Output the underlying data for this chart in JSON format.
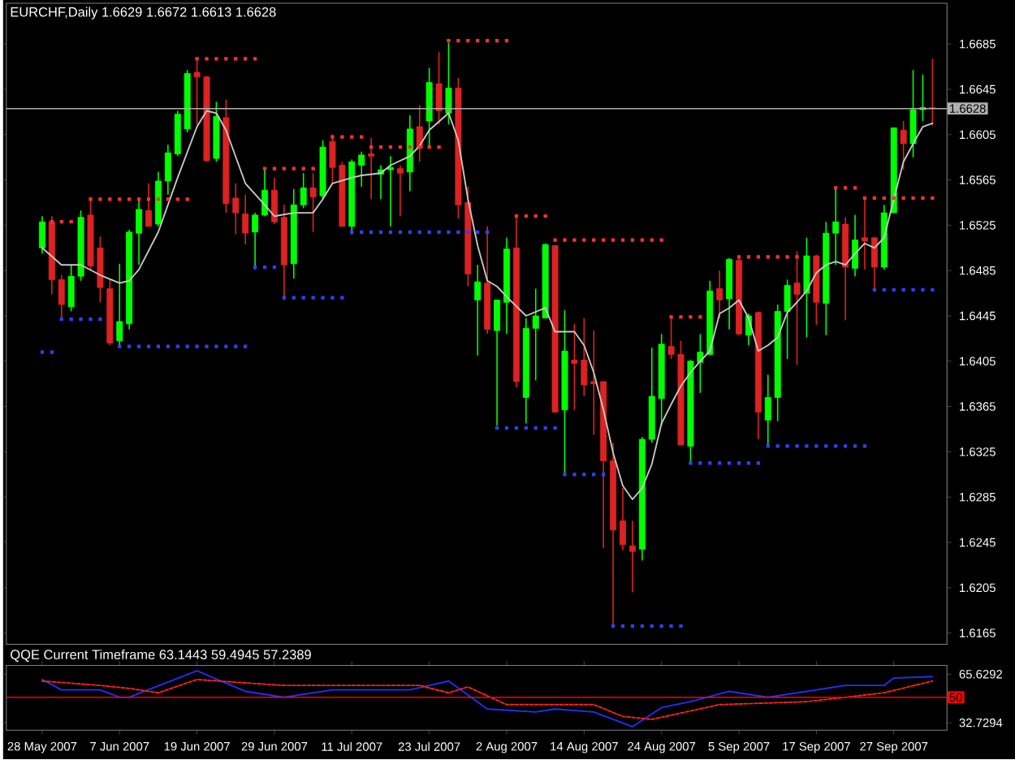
{
  "chart_data": [
    {
      "type": "candlestick",
      "title": "EURCHF,Daily  1.6629 1.6672 1.6613 1.6628",
      "categories": [
        null,
        null,
        null,
        null,
        null,
        null,
        null,
        null,
        null,
        null,
        null,
        null,
        null,
        null,
        null,
        null,
        null,
        null,
        null,
        null,
        null,
        null,
        null,
        null,
        null,
        null,
        null,
        null,
        null,
        null,
        null,
        null,
        null,
        null,
        null,
        null,
        null,
        null,
        null,
        null,
        null,
        null,
        null,
        null,
        null,
        null,
        null,
        null,
        null,
        null,
        null,
        null,
        null,
        null,
        null,
        null,
        null,
        null,
        null,
        null,
        null,
        null,
        null,
        null,
        null,
        null,
        null,
        null,
        null,
        null,
        null,
        null,
        null,
        null,
        null,
        null,
        null,
        null,
        null,
        null,
        null,
        null,
        null,
        null,
        null,
        null,
        null,
        null,
        null,
        null,
        null,
        null,
        null
      ],
      "ohlc": [
        [
          1.6505,
          1.6533,
          1.65,
          1.6528
        ],
        [
          1.6528,
          1.6533,
          1.6464,
          1.6477
        ],
        [
          1.6477,
          1.6481,
          1.6443,
          1.6455
        ],
        [
          1.6453,
          1.649,
          1.6449,
          1.648
        ],
        [
          1.648,
          1.6538,
          1.6476,
          1.6532
        ],
        [
          1.6534,
          1.655,
          1.6486,
          1.6489
        ],
        [
          1.6505,
          1.6515,
          1.6457,
          1.647
        ],
        [
          1.6469,
          1.6478,
          1.6419,
          1.6421
        ],
        [
          1.6423,
          1.6491,
          1.6417,
          1.644
        ],
        [
          1.6438,
          1.6521,
          1.6433,
          1.6519
        ],
        [
          1.6518,
          1.6547,
          1.649,
          1.6539
        ],
        [
          1.6538,
          1.6562,
          1.6524,
          1.6524
        ],
        [
          1.6526,
          1.6572,
          1.6524,
          1.6564
        ],
        [
          1.6564,
          1.6596,
          1.6552,
          1.6589
        ],
        [
          1.6588,
          1.6626,
          1.6586,
          1.6623
        ],
        [
          1.661,
          1.6662,
          1.6607,
          1.6659
        ],
        [
          1.666,
          1.6671,
          1.6614,
          1.6656
        ],
        [
          1.6656,
          1.6657,
          1.6581,
          1.6582
        ],
        [
          1.6584,
          1.6634,
          1.6581,
          1.6621
        ],
        [
          1.662,
          1.6636,
          1.6536,
          1.6544
        ],
        [
          1.6549,
          1.6562,
          1.6517,
          1.6536
        ],
        [
          1.6535,
          1.6552,
          1.6508,
          1.6518
        ],
        [
          1.6519,
          1.6536,
          1.6486,
          1.6534
        ],
        [
          1.6534,
          1.6576,
          1.6533,
          1.6556
        ],
        [
          1.6556,
          1.6567,
          1.6526,
          1.6528
        ],
        [
          1.6532,
          1.6543,
          1.6459,
          1.649
        ],
        [
          1.6491,
          1.6557,
          1.6478,
          1.6543
        ],
        [
          1.6543,
          1.6571,
          1.654,
          1.6558
        ],
        [
          1.6558,
          1.6571,
          1.6519,
          1.655
        ],
        [
          1.6551,
          1.66,
          1.6548,
          1.6594
        ],
        [
          1.6599,
          1.6605,
          1.6562,
          1.6576
        ],
        [
          1.6578,
          1.6581,
          1.6524,
          1.6524
        ],
        [
          1.6524,
          1.6583,
          1.6517,
          1.6581
        ],
        [
          1.6578,
          1.659,
          1.6559,
          1.6587
        ],
        [
          1.6588,
          1.6602,
          1.6548,
          1.6586
        ],
        [
          1.657,
          1.6578,
          1.6548,
          1.6574
        ],
        [
          1.6574,
          1.6586,
          1.6524,
          1.6576
        ],
        [
          1.6575,
          1.6578,
          1.6533,
          1.6571
        ],
        [
          1.6572,
          1.6622,
          1.6555,
          1.661
        ],
        [
          1.6612,
          1.6631,
          1.6581,
          1.6593
        ],
        [
          1.6617,
          1.6664,
          1.6595,
          1.6651
        ],
        [
          1.665,
          1.6678,
          1.6614,
          1.6626
        ],
        [
          1.6624,
          1.6686,
          1.6614,
          1.6646
        ],
        [
          1.6646,
          1.6655,
          1.6531,
          1.6543
        ],
        [
          1.6545,
          1.6559,
          1.6471,
          1.6482
        ],
        [
          1.6459,
          1.649,
          1.641,
          1.6475
        ],
        [
          1.6474,
          1.6524,
          1.6429,
          1.6433
        ],
        [
          1.6432,
          1.6459,
          1.6348,
          1.6459
        ],
        [
          1.6457,
          1.6514,
          1.6429,
          1.6504
        ],
        [
          1.6505,
          1.6533,
          1.6382,
          1.6387
        ],
        [
          1.6373,
          1.6443,
          1.635,
          1.6434
        ],
        [
          1.6434,
          1.6469,
          1.6388,
          1.6445
        ],
        [
          1.6443,
          1.6509,
          1.6443,
          1.6508
        ],
        [
          1.6507,
          1.6507,
          1.636,
          1.636
        ],
        [
          1.6362,
          1.645,
          1.6305,
          1.6414
        ],
        [
          1.6406,
          1.6438,
          1.6362,
          1.6403
        ],
        [
          1.6406,
          1.6443,
          1.6374,
          1.6384
        ],
        [
          1.6387,
          1.6432,
          1.634,
          1.6385
        ],
        [
          1.6387,
          1.6387,
          1.624,
          1.6317
        ],
        [
          1.6317,
          1.6333,
          1.6171,
          1.6256
        ],
        [
          1.6264,
          1.6293,
          1.6238,
          1.6243
        ],
        [
          1.6242,
          1.6264,
          1.6201,
          1.6237
        ],
        [
          1.6239,
          1.6338,
          1.6229,
          1.6336
        ],
        [
          1.6336,
          1.6417,
          1.6333,
          1.6374
        ],
        [
          1.6372,
          1.6429,
          1.6348,
          1.642
        ],
        [
          1.6418,
          1.6443,
          1.6407,
          1.6411
        ],
        [
          1.6411,
          1.6423,
          1.6331,
          1.6331
        ],
        [
          1.633,
          1.6406,
          1.6314,
          1.6405
        ],
        [
          1.6404,
          1.6429,
          1.6377,
          1.6413
        ],
        [
          1.6411,
          1.6476,
          1.641,
          1.6467
        ],
        [
          1.6469,
          1.6485,
          1.6443,
          1.6459
        ],
        [
          1.646,
          1.6496,
          1.6433,
          1.6495
        ],
        [
          1.6494,
          1.6498,
          1.6428,
          1.6429
        ],
        [
          1.6428,
          1.6447,
          1.6419,
          1.6445
        ],
        [
          1.6448,
          1.6449,
          1.6336,
          1.636
        ],
        [
          1.6353,
          1.6393,
          1.6331,
          1.6373
        ],
        [
          1.6373,
          1.6455,
          1.6352,
          1.6449
        ],
        [
          1.6449,
          1.6477,
          1.6407,
          1.6472
        ],
        [
          1.6474,
          1.6502,
          1.6402,
          1.6464
        ],
        [
          1.6465,
          1.6514,
          1.6426,
          1.6498
        ],
        [
          1.6498,
          1.6499,
          1.6437,
          1.6457
        ],
        [
          1.6456,
          1.6528,
          1.6428,
          1.6518
        ],
        [
          1.6518,
          1.6557,
          1.649,
          1.6528
        ],
        [
          1.6526,
          1.6532,
          1.6441,
          1.6488
        ],
        [
          1.6487,
          1.6534,
          1.648,
          1.6512
        ],
        [
          1.6514,
          1.655,
          1.6486,
          1.6511
        ],
        [
          1.6514,
          1.6514,
          1.6467,
          1.6488
        ],
        [
          1.6488,
          1.6543,
          1.6486,
          1.6536
        ],
        [
          1.6536,
          1.6611,
          1.6536,
          1.6611
        ],
        [
          1.6609,
          1.6617,
          1.6574,
          1.6597
        ],
        [
          1.6597,
          1.6662,
          1.6585,
          1.6627
        ],
        [
          1.6627,
          1.6658,
          1.6617,
          1.6629
        ],
        [
          1.6629,
          1.6672,
          1.6613,
          1.6628
        ]
      ],
      "colors": [
        "#00ff00",
        "#dd2222",
        "#dd2222",
        "#00ff00",
        "#00ff00",
        "#dd2222",
        "#dd2222",
        "#dd2222",
        "#00ff00",
        "#00ff00",
        "#00ff00",
        "#dd2222",
        "#00ff00",
        "#00ff00",
        "#00ff00",
        "#00ff00",
        "#dd2222",
        "#dd2222",
        "#00ff00",
        "#dd2222",
        "#dd2222",
        "#dd2222",
        "#00ff00",
        "#00ff00",
        "#dd2222",
        "#dd2222",
        "#00ff00",
        "#00ff00",
        "#dd2222",
        "#00ff00",
        "#dd2222",
        "#dd2222",
        "#00ff00",
        "#00ff00",
        "#dd2222",
        "#00ff00",
        "#00ff00",
        "#dd2222",
        "#00ff00",
        "#dd2222",
        "#00ff00",
        "#dd2222",
        "#00ff00",
        "#dd2222",
        "#dd2222",
        "#00ff00",
        "#dd2222",
        "#00ff00",
        "#00ff00",
        "#dd2222",
        "#00ff00",
        "#00ff00",
        "#00ff00",
        "#dd2222",
        "#00ff00",
        "#dd2222",
        "#dd2222",
        "#dd2222",
        "#dd2222",
        "#dd2222",
        "#dd2222",
        "#dd2222",
        "#00ff00",
        "#00ff00",
        "#00ff00",
        "#dd2222",
        "#dd2222",
        "#00ff00",
        "#00ff00",
        "#00ff00",
        "#dd2222",
        "#00ff00",
        "#dd2222",
        "#00ff00",
        "#dd2222",
        "#00ff00",
        "#00ff00",
        "#00ff00",
        "#dd2222",
        "#00ff00",
        "#dd2222",
        "#00ff00",
        "#00ff00",
        "#dd2222",
        "#00ff00",
        "#dd2222",
        "#dd2222",
        "#00ff00",
        "#00ff00",
        "#dd2222",
        "#00ff00",
        "#00ff00",
        "#dd2222"
      ],
      "series": [
        {
          "type": "line",
          "color": "#c8c8c8",
          "line_style": "solid",
          "marker": "none",
          "values": [
            1.6505,
            null,
            1.649,
            null,
            1.649,
            null,
            1.6481,
            null,
            1.6474,
            1.6476,
            1.6486,
            null,
            1.6519,
            null,
            1.6567,
            null,
            1.6612,
            1.6626,
            1.6624,
            1.6609,
            null,
            1.6562,
            null,
            1.6543,
            1.6533,
            null,
            1.6536,
            null,
            1.6536,
            1.6548,
            1.6562,
            null,
            1.6567,
            1.6569,
            null,
            1.6571,
            1.6578,
            null,
            1.6586,
            1.6595,
            1.6609,
            null,
            1.6624,
            1.66,
            1.6548,
            1.6507,
            1.6476,
            1.6471,
            1.6462,
            null,
            1.6445,
            null,
            1.6452,
            1.6431,
            null,
            1.6431,
            1.6419,
            1.6395,
            1.6362,
            1.6324,
            1.6295,
            1.6283,
            1.6293,
            1.6314,
            1.635,
            1.6367,
            1.6383,
            1.6395,
            1.6405,
            1.6414,
            1.6447,
            1.6452,
            1.6459,
            1.6443,
            1.6414,
            1.6419,
            1.6426,
            1.6448,
            1.6457,
            1.6467,
            1.6483,
            1.649,
            1.6493,
            1.649,
            1.65,
            1.6509,
            1.6505,
            1.6514,
            1.6548,
            1.6581,
            1.6597,
            1.6612,
            1.6615
          ]
        },
        {
          "type": "scatter",
          "color": "#ff3030",
          "marker": "square",
          "values": [
            null,
            1.6528,
            1.6528,
            1.6528,
            null,
            1.6548,
            1.6548,
            1.6548,
            1.6548,
            1.6548,
            1.6548,
            1.6548,
            1.6548,
            1.6548,
            1.6548,
            1.6548,
            1.6672,
            1.6672,
            1.6672,
            1.6672,
            1.6672,
            1.6672,
            1.6672,
            1.6575,
            1.6575,
            1.6575,
            1.6575,
            1.6575,
            1.6575,
            null,
            1.6603,
            1.6603,
            1.6603,
            1.6603,
            1.6594,
            1.6594,
            1.6594,
            1.6594,
            1.6594,
            1.6594,
            1.6594,
            1.6594,
            1.6688,
            1.6688,
            1.6688,
            1.6688,
            1.6688,
            1.6688,
            1.6688,
            1.6533,
            1.6533,
            1.6533,
            1.6533,
            1.6512,
            1.6512,
            1.6512,
            1.6512,
            1.6512,
            1.6512,
            1.6512,
            1.6512,
            1.6512,
            1.6512,
            1.6512,
            1.6512,
            1.6444,
            1.6444,
            1.6444,
            1.6444,
            null,
            null,
            null,
            1.6497,
            1.6497,
            1.6497,
            1.6497,
            1.6497,
            1.6497,
            1.6497,
            null,
            null,
            null,
            1.6558,
            1.6558,
            1.6558,
            1.6549,
            1.6549,
            1.6549,
            1.6549,
            1.6549,
            1.6549,
            1.6549,
            1.6549
          ]
        },
        {
          "type": "scatter",
          "color": "#3040ff",
          "marker": "square",
          "values": [
            1.6413,
            1.6413,
            1.6442,
            1.6442,
            1.6442,
            1.6442,
            1.6442,
            null,
            1.6418,
            1.6418,
            1.6418,
            1.6418,
            1.6418,
            1.6418,
            1.6418,
            1.6418,
            1.6418,
            1.6418,
            1.6418,
            1.6418,
            1.6418,
            1.6418,
            1.6488,
            1.6488,
            1.6488,
            1.6461,
            1.6461,
            1.6461,
            1.6461,
            1.6461,
            1.6461,
            1.6461,
            1.6519,
            1.6519,
            1.6519,
            1.6519,
            1.6519,
            1.6519,
            1.6519,
            1.6519,
            1.6519,
            1.6519,
            1.6519,
            1.6519,
            1.6519,
            1.6519,
            1.6519,
            1.6346,
            1.6346,
            1.6346,
            1.6346,
            1.6346,
            1.6346,
            1.6346,
            1.6305,
            1.6305,
            1.6305,
            1.6305,
            1.6305,
            1.6171,
            1.6171,
            1.6171,
            1.6171,
            1.6171,
            1.6171,
            1.6171,
            1.6171,
            1.6315,
            1.6315,
            1.6315,
            1.6315,
            1.6315,
            1.6315,
            1.6315,
            1.6315,
            1.633,
            1.633,
            1.633,
            1.633,
            1.633,
            1.633,
            1.633,
            1.633,
            1.633,
            1.633,
            1.633,
            1.6468,
            1.6468,
            1.6468,
            1.6468,
            1.6468,
            1.6468,
            1.6468
          ]
        }
      ],
      "ylim": [
        1.6155,
        1.6721
      ],
      "yticks": [
        1.6685,
        1.6645,
        1.6605,
        1.6565,
        1.6525,
        1.6485,
        1.6445,
        1.6405,
        1.6365,
        1.6325,
        1.6285,
        1.6245,
        1.6205,
        1.6165
      ],
      "ref_lines": [
        {
          "axis": "y",
          "value": 1.6628,
          "label": "1.6628",
          "color": "#b0b0b0"
        }
      ],
      "tick_labels": "y"
    },
    {
      "type": "line",
      "title": "QQE Current Timeframe 63.1443 59.4945 57.2389",
      "categories": [
        "28 May 2007",
        null,
        null,
        null,
        null,
        null,
        null,
        null,
        "7 Jun 2007",
        null,
        null,
        null,
        null,
        null,
        null,
        null,
        "19 Jun 2007",
        null,
        null,
        null,
        null,
        null,
        null,
        null,
        "29 Jun 2007",
        null,
        null,
        null,
        null,
        null,
        null,
        null,
        "11 Jul 2007",
        null,
        null,
        null,
        null,
        null,
        null,
        null,
        "23 Jul 2007",
        null,
        null,
        null,
        null,
        null,
        null,
        null,
        "2 Aug 2007",
        null,
        null,
        null,
        null,
        null,
        null,
        null,
        "14 Aug 2007",
        null,
        null,
        null,
        null,
        null,
        null,
        null,
        "24 Aug 2007",
        null,
        null,
        null,
        null,
        null,
        null,
        null,
        "5 Sep 2007",
        null,
        null,
        null,
        null,
        null,
        null,
        null,
        "17 Sep 2007",
        null,
        null,
        null,
        null,
        null,
        null,
        null,
        "27 Sep 2007",
        null,
        null,
        null,
        null
      ],
      "series": [
        {
          "color": "#2030ff",
          "line_style": "solid",
          "values": [
            62,
            null,
            55,
            null,
            null,
            null,
            55,
            null,
            50,
            50,
            null,
            null,
            null,
            null,
            null,
            null,
            68,
            null,
            null,
            null,
            null,
            54,
            null,
            null,
            null,
            50,
            null,
            null,
            null,
            null,
            55,
            null,
            null,
            null,
            null,
            null,
            null,
            null,
            55,
            null,
            null,
            null,
            61,
            null,
            null,
            null,
            42,
            null,
            null,
            null,
            null,
            40,
            null,
            42,
            null,
            null,
            null,
            40,
            null,
            null,
            null,
            30,
            null,
            null,
            43,
            null,
            null,
            47,
            null,
            null,
            null,
            54,
            null,
            null,
            null,
            50,
            null,
            null,
            null,
            null,
            55,
            null,
            null,
            58,
            null,
            null,
            null,
            58,
            63,
            null,
            null,
            null,
            64
          ]
        },
        {
          "color": "#ff2020",
          "line_style": "dashed",
          "values": [
            61,
            null,
            null,
            null,
            null,
            null,
            58,
            null,
            null,
            56,
            null,
            null,
            53,
            null,
            null,
            null,
            62,
            null,
            null,
            null,
            null,
            null,
            null,
            null,
            null,
            58,
            null,
            null,
            null,
            null,
            null,
            null,
            null,
            null,
            null,
            null,
            null,
            null,
            null,
            58,
            null,
            null,
            53,
            null,
            57,
            null,
            null,
            null,
            45,
            null,
            null,
            null,
            null,
            null,
            null,
            null,
            null,
            45,
            null,
            null,
            37,
            null,
            null,
            35,
            null,
            null,
            null,
            null,
            null,
            null,
            45,
            null,
            null,
            null,
            null,
            null,
            null,
            null,
            null,
            47,
            null,
            null,
            null,
            null,
            null,
            null,
            null,
            53,
            null,
            null,
            null,
            null,
            61
          ]
        }
      ],
      "ylim": [
        27.7,
        71.6
      ],
      "yticks": [
        65.6292,
        32.7294
      ],
      "ref_lines": [
        {
          "axis": "y",
          "value": 50,
          "label": "50",
          "color": "#ff0000"
        }
      ]
    }
  ]
}
